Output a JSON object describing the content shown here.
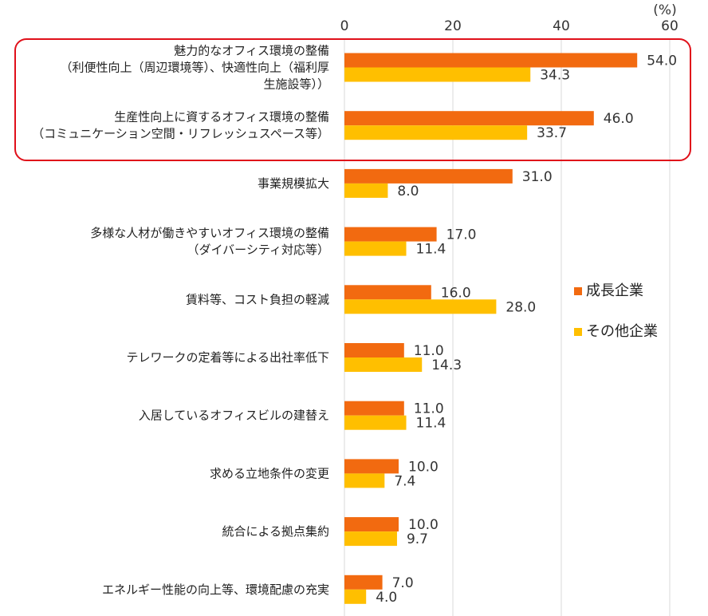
{
  "chart_data": {
    "type": "bar",
    "orientation": "horizontal",
    "unit_label": "(%)",
    "xlim": [
      0,
      60
    ],
    "x_ticks": [
      "0",
      "20",
      "40",
      "60"
    ],
    "grid": true,
    "legend_position": "right",
    "highlight_box_categories": [
      0,
      1
    ],
    "highlight_color": "#e0101a",
    "categories": [
      [
        "魅力的なオフィス環境の整備",
        "（利便性向上（周辺環境等）、快適性向上（福利厚",
        "生施設等））"
      ],
      [
        "生産性向上に資するオフィス環境の整備",
        "（コミュニケーション空間・リフレッシュスペース等）"
      ],
      [
        "事業規模拡大"
      ],
      [
        "多様な人材が働きやすいオフィス環境の整備",
        "（ダイバーシティ対応等）"
      ],
      [
        "賃料等、コスト負担の軽減"
      ],
      [
        "テレワークの定着等による出社率低下"
      ],
      [
        "入居しているオフィスビルの建替え"
      ],
      [
        "求める立地条件の変更"
      ],
      [
        "統合による拠点集約"
      ],
      [
        "エネルギー性能の向上等、環境配慮の充実"
      ]
    ],
    "series": [
      {
        "name": "成長企業",
        "color": "#f26a10",
        "values": [
          54.0,
          46.0,
          31.0,
          17.0,
          16.0,
          11.0,
          11.0,
          10.0,
          10.0,
          7.0
        ],
        "labels": [
          "54.0",
          "46.0",
          "31.0",
          "17.0",
          "16.0",
          "11.0",
          "11.0",
          "10.0",
          "10.0",
          "7.0"
        ]
      },
      {
        "name": "その他企業",
        "color": "#ffbf00",
        "values": [
          34.3,
          33.7,
          8.0,
          11.4,
          28.0,
          14.3,
          11.4,
          7.4,
          9.7,
          4.0
        ],
        "labels": [
          "34.3",
          "33.7",
          "8.0",
          "11.4",
          "28.0",
          "14.3",
          "11.4",
          "7.4",
          "9.7",
          "4.0"
        ]
      }
    ]
  }
}
